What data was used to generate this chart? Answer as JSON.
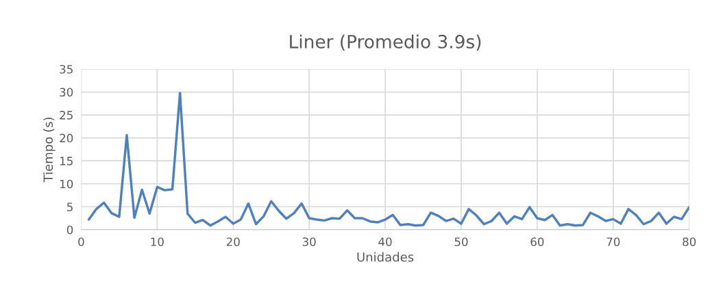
{
  "chart_data": {
    "type": "line",
    "title": "Liner (Promedio 3.9s)",
    "xlabel": "Unidades",
    "ylabel": "Tiempo (s)",
    "x": [
      1,
      2,
      3,
      4,
      5,
      6,
      7,
      8,
      9,
      10,
      11,
      12,
      13,
      14,
      15,
      16,
      17,
      18,
      19,
      20,
      21,
      22,
      23,
      24,
      25,
      26,
      27,
      28,
      29,
      30,
      31,
      32,
      33,
      34,
      35,
      36,
      37,
      38,
      39,
      40,
      41,
      42,
      43,
      44,
      45,
      46,
      47,
      48,
      49,
      50,
      51,
      52,
      53,
      54,
      55,
      56,
      57,
      58,
      59,
      60,
      61,
      62,
      63,
      64,
      65,
      66,
      67,
      68,
      69,
      70,
      71,
      72,
      73,
      74,
      75,
      76,
      77,
      78,
      79,
      80
    ],
    "series": [
      {
        "color": "#4f81bd",
        "values": [
          2.2,
          4.5,
          5.9,
          3.6,
          2.8,
          20.6,
          2.6,
          8.7,
          3.5,
          9.3,
          8.6,
          8.8,
          29.8,
          3.5,
          1.5,
          2.1,
          0.9,
          1.8,
          2.8,
          1.3,
          2.2,
          5.7,
          1.2,
          2.9,
          6.2,
          4.1,
          2.4,
          3.6,
          5.7,
          2.5,
          2.2,
          2.0,
          2.5,
          2.4,
          4.2,
          2.5,
          2.5,
          1.8,
          1.6,
          2.2,
          3.2,
          1.0,
          1.2,
          0.9,
          1.0,
          3.7,
          3.0,
          1.9,
          2.4,
          1.3,
          4.5,
          3.1,
          1.2,
          1.9,
          3.7,
          1.3,
          2.9,
          2.3,
          4.9,
          2.5,
          2.1,
          3.2,
          0.9,
          1.2,
          0.9,
          1.0,
          3.7,
          2.9,
          1.9,
          2.3,
          1.3,
          4.5,
          3.2,
          1.2,
          1.9,
          3.7,
          1.3,
          2.8,
          2.3,
          4.9
        ]
      }
    ],
    "xlim": [
      0,
      80
    ],
    "xticks": [
      0,
      10,
      20,
      30,
      40,
      50,
      60,
      70,
      80
    ],
    "ylim": [
      0,
      35
    ],
    "yticks": [
      0,
      5,
      10,
      15,
      20,
      25,
      30,
      35
    ],
    "grid": true,
    "marker": "none",
    "line_style": "solid"
  }
}
